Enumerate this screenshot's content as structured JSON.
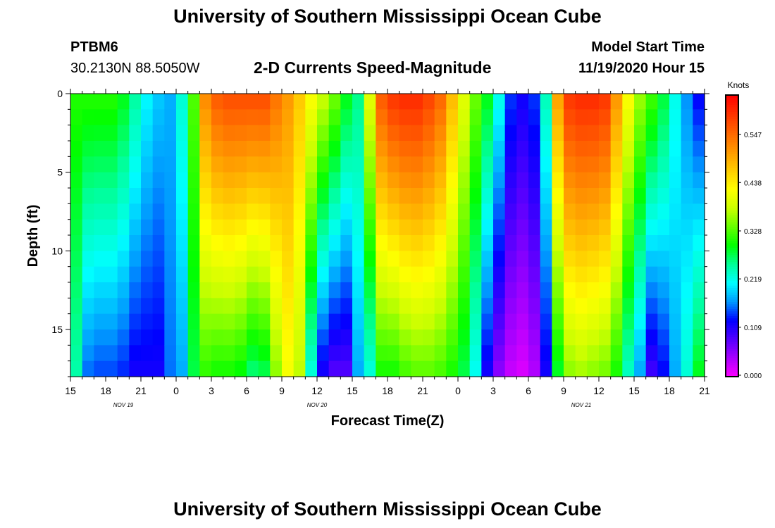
{
  "header": {
    "title": "University of Southern Mississippi Ocean Cube",
    "station_id": "PTBM6",
    "station_coords": "30.2130N 88.5050W",
    "plot_title": "2-D Currents Speed-Magnitude",
    "start_label": "Model Start Time",
    "start_value": "11/19/2020 Hour 15"
  },
  "footer": {
    "title": "University of Southern Mississippi Ocean Cube"
  },
  "chart_data": {
    "type": "heatmap",
    "title": "2-D Currents Speed-Magnitude",
    "xlabel": "Forecast Time(Z)",
    "ylabel": "Depth (ft)",
    "x_hours_range": [
      0,
      54
    ],
    "ylim": [
      0,
      18
    ],
    "x_ticks": [
      "15",
      "18",
      "21",
      "0",
      "3",
      "6",
      "9",
      "12",
      "15",
      "18",
      "21",
      "0",
      "3",
      "6",
      "9",
      "12",
      "15",
      "18",
      "21"
    ],
    "y_ticks": [
      "0",
      "5",
      "10",
      "15"
    ],
    "date_labels": [
      {
        "text": "NOV 19",
        "hour": 4.5
      },
      {
        "text": "NOV 20",
        "hour": 21
      },
      {
        "text": "NOV 21",
        "hour": 43.5
      }
    ],
    "colorbar": {
      "title": "Knots",
      "ticks": [
        "0.000",
        "0.109",
        "0.219",
        "0.328",
        "0.438",
        "0.547"
      ],
      "min": 0.0,
      "max": 0.64,
      "colors": [
        "#ff00ff",
        "#aa00ff",
        "#5500ff",
        "#0000ff",
        "#0099ff",
        "#00ffff",
        "#00ff99",
        "#00ff00",
        "#66ff00",
        "#ccff00",
        "#ffff00",
        "#ffcc00",
        "#ff9900",
        "#ff6600",
        "#ff3300",
        "#ff0000"
      ]
    },
    "time_steps": 54,
    "depth_levels": 18,
    "surface_speed": [
      0.31,
      0.31,
      0.31,
      0.31,
      0.29,
      0.25,
      0.21,
      0.19,
      0.18,
      0.23,
      0.33,
      0.52,
      0.56,
      0.57,
      0.57,
      0.57,
      0.57,
      0.54,
      0.51,
      0.47,
      0.42,
      0.38,
      0.34,
      0.29,
      0.26,
      0.4,
      0.56,
      0.59,
      0.6,
      0.6,
      0.58,
      0.55,
      0.48,
      0.4,
      0.34,
      0.29,
      0.22,
      0.14,
      0.12,
      0.14,
      0.24,
      0.5,
      0.59,
      0.6,
      0.6,
      0.59,
      0.51,
      0.42,
      0.36,
      0.32,
      0.28,
      0.22,
      0.17,
      0.13
    ],
    "bottom_speed": [
      0.25,
      0.16,
      0.15,
      0.15,
      0.14,
      0.12,
      0.12,
      0.12,
      0.16,
      0.18,
      0.28,
      0.32,
      0.31,
      0.31,
      0.3,
      0.27,
      0.28,
      0.36,
      0.42,
      0.38,
      0.23,
      0.12,
      0.09,
      0.09,
      0.18,
      0.23,
      0.31,
      0.31,
      0.33,
      0.34,
      0.34,
      0.33,
      0.31,
      0.28,
      0.22,
      0.12,
      0.06,
      0.03,
      0.02,
      0.04,
      0.12,
      0.29,
      0.36,
      0.37,
      0.36,
      0.35,
      0.31,
      0.24,
      0.18,
      0.1,
      0.13,
      0.18,
      0.23,
      0.29
    ]
  }
}
